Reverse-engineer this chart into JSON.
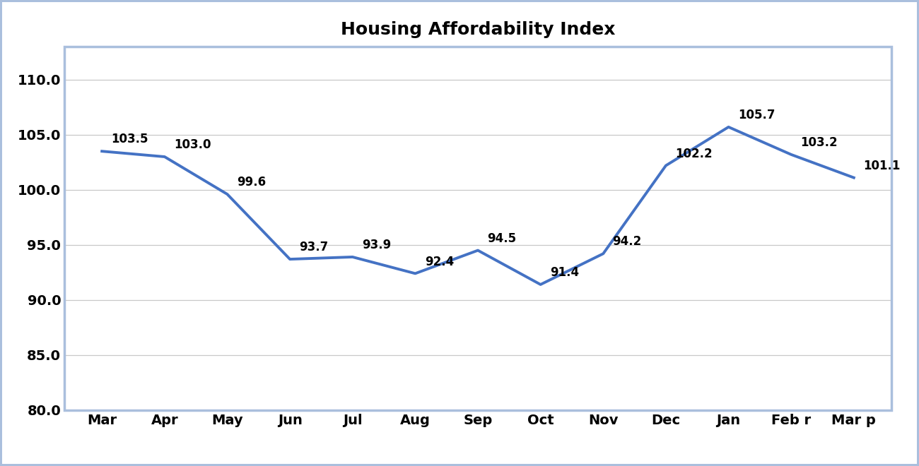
{
  "title": "Housing Affordability Index",
  "months": [
    "Mar",
    "Apr",
    "May",
    "Jun",
    "Jul",
    "Aug",
    "Sep",
    "Oct",
    "Nov",
    "Dec",
    "Jan",
    "Feb r",
    "Mar p"
  ],
  "values": [
    103.5,
    103.0,
    99.6,
    93.7,
    93.9,
    92.4,
    94.5,
    91.4,
    94.2,
    102.2,
    105.7,
    103.2,
    101.1
  ],
  "ylim": [
    80.0,
    113.0
  ],
  "yticks": [
    80.0,
    85.0,
    90.0,
    95.0,
    100.0,
    105.0,
    110.0
  ],
  "line_color": "#4472C4",
  "line_width": 2.8,
  "figure_bg_color": "#FFFFFF",
  "plot_bg_color": "#FFFFFF",
  "border_color": "#AABFDD",
  "grid_color": "#C8C8C8",
  "title_fontsize": 18,
  "tick_fontsize": 14,
  "label_fontsize": 12,
  "label_x_offsets": [
    0.15,
    0.15,
    0.15,
    0.15,
    0.15,
    0.15,
    0.15,
    0.15,
    0.15,
    0.15,
    0.15,
    0.15,
    0.15
  ],
  "label_y_offsets": [
    0.5,
    0.5,
    0.5,
    0.5,
    0.5,
    0.5,
    0.5,
    0.5,
    0.5,
    0.5,
    0.5,
    0.5,
    0.5
  ]
}
